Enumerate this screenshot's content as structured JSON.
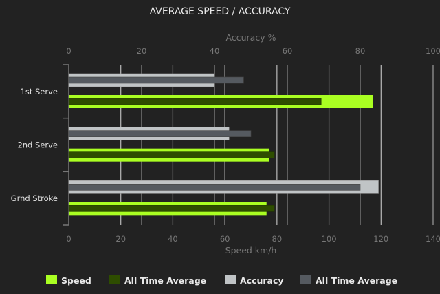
{
  "chart_data": {
    "type": "bar",
    "orientation": "horizontal",
    "title": "AVERAGE SPEED / ACCURACY",
    "categories": [
      "1st Serve",
      "2nd Serve",
      "Grnd Stroke"
    ],
    "speed_axis": {
      "label": "Speed km/h",
      "range": [
        0,
        140
      ],
      "ticks": [
        0,
        20,
        40,
        60,
        80,
        100,
        120,
        140
      ],
      "position": "bottom"
    },
    "accuracy_axis": {
      "label": "Accuracy %",
      "range": [
        0,
        100
      ],
      "ticks": [
        0,
        20,
        40,
        60,
        80,
        100
      ],
      "position": "top"
    },
    "series": [
      {
        "name": "Speed",
        "axis": "speed",
        "color": "#aaff22",
        "values": [
          117,
          77,
          76
        ]
      },
      {
        "name": "All Time Average",
        "axis": "speed",
        "color": "#2e4d00",
        "values": [
          97,
          79,
          79
        ]
      },
      {
        "name": "Accuracy",
        "axis": "accuracy",
        "color": "#c0c4c6",
        "values": [
          40,
          44,
          85
        ]
      },
      {
        "name": "All Time Average",
        "axis": "accuracy",
        "color": "#555a60",
        "values": [
          48,
          50,
          80
        ]
      }
    ],
    "grid": true,
    "legend": "bottom"
  }
}
